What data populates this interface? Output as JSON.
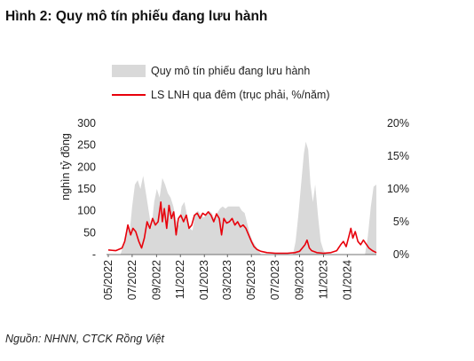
{
  "title": "Hình 2: Quy mô tín phiếu đang lưu hành",
  "source": "Nguồn: NHNN, CTCK Rồng Việt",
  "chart_data": {
    "type": "area+line",
    "ylabel_left": "nghìn tỷ đồng",
    "ylim_left": [
      0,
      300
    ],
    "yticks_left": [
      "-",
      "50",
      "100",
      "150",
      "200",
      "250",
      "300"
    ],
    "ylim_right": [
      0,
      20
    ],
    "yticks_right": [
      "0%",
      "5%",
      "10%",
      "15%",
      "20%"
    ],
    "x_range": [
      "2022-05-01",
      "2024-03-15"
    ],
    "xticks": [
      "05/2022",
      "07/2022",
      "09/2022",
      "11/2022",
      "01/2023",
      "03/2023",
      "05/2023",
      "07/2023",
      "09/2023",
      "11/2023",
      "01/2024"
    ],
    "legend": [
      {
        "label": "Quy mô tín phiếu đang lưu hành",
        "type": "area",
        "color": "#d9d9d9"
      },
      {
        "label": "LS LNH qua đêm (trục phải, %/năm)",
        "type": "line",
        "color": "#e8000b"
      }
    ],
    "series": [
      {
        "name": "Quy mô tín phiếu đang lưu hành",
        "axis": "left",
        "points": [
          [
            "2022-05-01",
            0
          ],
          [
            "2022-06-01",
            0
          ],
          [
            "2022-06-12",
            30
          ],
          [
            "2022-06-18",
            70
          ],
          [
            "2022-06-25",
            55
          ],
          [
            "2022-07-01",
            110
          ],
          [
            "2022-07-08",
            160
          ],
          [
            "2022-07-15",
            170
          ],
          [
            "2022-07-22",
            150
          ],
          [
            "2022-07-29",
            180
          ],
          [
            "2022-08-05",
            140
          ],
          [
            "2022-08-12",
            100
          ],
          [
            "2022-08-19",
            60
          ],
          [
            "2022-08-26",
            120
          ],
          [
            "2022-09-02",
            150
          ],
          [
            "2022-09-09",
            130
          ],
          [
            "2022-09-16",
            175
          ],
          [
            "2022-09-23",
            160
          ],
          [
            "2022-09-30",
            140
          ],
          [
            "2022-10-07",
            130
          ],
          [
            "2022-10-14",
            110
          ],
          [
            "2022-10-21",
            80
          ],
          [
            "2022-10-28",
            65
          ],
          [
            "2022-11-04",
            110
          ],
          [
            "2022-11-11",
            120
          ],
          [
            "2022-11-18",
            90
          ],
          [
            "2022-11-25",
            60
          ],
          [
            "2022-12-02",
            55
          ],
          [
            "2022-12-09",
            95
          ],
          [
            "2022-12-16",
            100
          ],
          [
            "2022-12-23",
            90
          ],
          [
            "2022-12-30",
            85
          ],
          [
            "2023-01-06",
            90
          ],
          [
            "2023-01-13",
            100
          ],
          [
            "2023-01-20",
            95
          ],
          [
            "2023-01-27",
            80
          ],
          [
            "2023-02-03",
            95
          ],
          [
            "2023-02-10",
            105
          ],
          [
            "2023-02-17",
            110
          ],
          [
            "2023-02-24",
            105
          ],
          [
            "2023-03-03",
            110
          ],
          [
            "2023-03-10",
            110
          ],
          [
            "2023-03-17",
            110
          ],
          [
            "2023-03-24",
            110
          ],
          [
            "2023-03-31",
            110
          ],
          [
            "2023-04-07",
            100
          ],
          [
            "2023-04-14",
            95
          ],
          [
            "2023-04-21",
            70
          ],
          [
            "2023-04-28",
            45
          ],
          [
            "2023-05-05",
            30
          ],
          [
            "2023-05-12",
            20
          ],
          [
            "2023-05-19",
            10
          ],
          [
            "2023-05-26",
            0
          ],
          [
            "2023-08-15",
            0
          ],
          [
            "2023-08-22",
            30
          ],
          [
            "2023-08-29",
            90
          ],
          [
            "2023-09-05",
            160
          ],
          [
            "2023-09-12",
            230
          ],
          [
            "2023-09-17",
            258
          ],
          [
            "2023-09-23",
            240
          ],
          [
            "2023-09-29",
            160
          ],
          [
            "2023-10-05",
            120
          ],
          [
            "2023-10-11",
            160
          ],
          [
            "2023-10-18",
            90
          ],
          [
            "2023-10-25",
            30
          ],
          [
            "2023-11-01",
            10
          ],
          [
            "2023-11-08",
            0
          ],
          [
            "2024-02-15",
            0
          ],
          [
            "2024-02-22",
            40
          ],
          [
            "2024-03-01",
            110
          ],
          [
            "2024-03-08",
            155
          ],
          [
            "2024-03-15",
            160
          ]
        ]
      },
      {
        "name": "LS LNH qua đêm (trục phải, %/năm)",
        "axis": "right",
        "points": [
          [
            "2022-05-01",
            0.7
          ],
          [
            "2022-05-20",
            0.6
          ],
          [
            "2022-06-05",
            1.0
          ],
          [
            "2022-06-12",
            2.0
          ],
          [
            "2022-06-20",
            4.5
          ],
          [
            "2022-06-27",
            3.0
          ],
          [
            "2022-07-03",
            4.0
          ],
          [
            "2022-07-10",
            3.5
          ],
          [
            "2022-07-18",
            2.0
          ],
          [
            "2022-07-25",
            1.0
          ],
          [
            "2022-08-01",
            2.5
          ],
          [
            "2022-08-08",
            5.0
          ],
          [
            "2022-08-15",
            4.0
          ],
          [
            "2022-08-22",
            5.5
          ],
          [
            "2022-08-29",
            4.5
          ],
          [
            "2022-09-05",
            5.0
          ],
          [
            "2022-09-12",
            8.0
          ],
          [
            "2022-09-16",
            5.0
          ],
          [
            "2022-09-21",
            7.0
          ],
          [
            "2022-09-27",
            4.0
          ],
          [
            "2022-10-03",
            7.5
          ],
          [
            "2022-10-09",
            5.5
          ],
          [
            "2022-10-15",
            6.5
          ],
          [
            "2022-10-21",
            3.0
          ],
          [
            "2022-10-27",
            5.5
          ],
          [
            "2022-11-02",
            6.0
          ],
          [
            "2022-11-09",
            5.0
          ],
          [
            "2022-11-16",
            6.0
          ],
          [
            "2022-11-23",
            4.0
          ],
          [
            "2022-11-30",
            4.5
          ],
          [
            "2022-12-07",
            6.0
          ],
          [
            "2022-12-14",
            6.3
          ],
          [
            "2022-12-21",
            5.5
          ],
          [
            "2022-12-28",
            6.3
          ],
          [
            "2023-01-04",
            6.0
          ],
          [
            "2023-01-11",
            6.5
          ],
          [
            "2023-01-18",
            6.0
          ],
          [
            "2023-01-25",
            5.0
          ],
          [
            "2023-02-01",
            6.2
          ],
          [
            "2023-02-08",
            5.5
          ],
          [
            "2023-02-14",
            3.0
          ],
          [
            "2023-02-20",
            5.5
          ],
          [
            "2023-02-27",
            4.8
          ],
          [
            "2023-03-06",
            5.0
          ],
          [
            "2023-03-13",
            5.5
          ],
          [
            "2023-03-20",
            4.5
          ],
          [
            "2023-03-27",
            5.0
          ],
          [
            "2023-04-03",
            4.2
          ],
          [
            "2023-04-10",
            4.5
          ],
          [
            "2023-04-17",
            4.0
          ],
          [
            "2023-04-24",
            3.0
          ],
          [
            "2023-05-01",
            2.0
          ],
          [
            "2023-05-08",
            1.2
          ],
          [
            "2023-05-15",
            0.8
          ],
          [
            "2023-05-25",
            0.5
          ],
          [
            "2023-06-10",
            0.3
          ],
          [
            "2023-07-01",
            0.2
          ],
          [
            "2023-08-01",
            0.2
          ],
          [
            "2023-08-20",
            0.3
          ],
          [
            "2023-09-01",
            0.5
          ],
          [
            "2023-09-08",
            1.0
          ],
          [
            "2023-09-15",
            1.5
          ],
          [
            "2023-09-20",
            2.2
          ],
          [
            "2023-09-26",
            1.0
          ],
          [
            "2023-10-02",
            0.6
          ],
          [
            "2023-10-15",
            0.3
          ],
          [
            "2023-11-01",
            0.2
          ],
          [
            "2023-11-20",
            0.3
          ],
          [
            "2023-12-05",
            0.6
          ],
          [
            "2023-12-15",
            1.5
          ],
          [
            "2023-12-22",
            2.0
          ],
          [
            "2023-12-29",
            1.2
          ],
          [
            "2024-01-05",
            2.8
          ],
          [
            "2024-01-10",
            4.0
          ],
          [
            "2024-01-15",
            2.5
          ],
          [
            "2024-01-21",
            3.5
          ],
          [
            "2024-01-28",
            2.0
          ],
          [
            "2024-02-04",
            1.5
          ],
          [
            "2024-02-11",
            2.2
          ],
          [
            "2024-02-18",
            1.6
          ],
          [
            "2024-02-25",
            1.0
          ],
          [
            "2024-03-05",
            0.6
          ],
          [
            "2024-03-15",
            0.3
          ]
        ]
      }
    ]
  }
}
